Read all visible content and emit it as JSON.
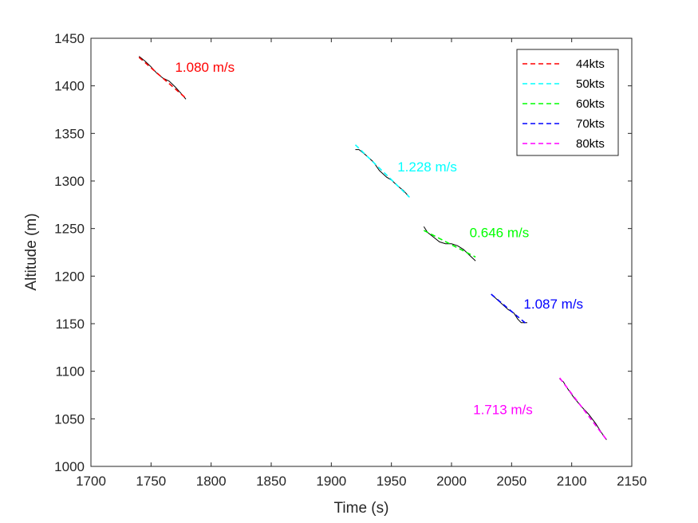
{
  "chart_data": {
    "type": "line",
    "xlabel": "Time (s)",
    "ylabel": "Altitude (m)",
    "xlim": [
      1700,
      2150
    ],
    "ylim": [
      1000,
      1450
    ],
    "xticks": [
      1700,
      1750,
      1800,
      1850,
      1900,
      1950,
      2000,
      2050,
      2100,
      2150
    ],
    "yticks": [
      1000,
      1050,
      1100,
      1150,
      1200,
      1250,
      1300,
      1350,
      1400,
      1450
    ],
    "grid": false,
    "legend_position": "top-right",
    "series": [
      {
        "name": "44kts",
        "color": "#ff0000",
        "style": "dashed",
        "x": [
          1740,
          1779
        ],
        "y": [
          1430,
          1387
        ],
        "measured": {
          "x": [
            1740,
            1745,
            1750,
            1755,
            1760,
            1765,
            1770,
            1775,
            1779
          ],
          "y": [
            1431,
            1426,
            1420,
            1413,
            1408,
            1405,
            1399,
            1392,
            1386
          ]
        },
        "annotation": {
          "text": "1.080 m/s",
          "x": 1770,
          "y": 1415
        }
      },
      {
        "name": "50kts",
        "color": "#00ffff",
        "style": "dashed",
        "x": [
          1920,
          1965
        ],
        "y": [
          1338,
          1283
        ],
        "measured": {
          "x": [
            1920,
            1923,
            1928,
            1935,
            1940,
            1946,
            1950,
            1955,
            1960,
            1965
          ],
          "y": [
            1333,
            1333,
            1328,
            1320,
            1311,
            1304,
            1301,
            1295,
            1290,
            1283
          ]
        },
        "annotation": {
          "text": "1.228 m/s",
          "x": 1955,
          "y": 1310
        }
      },
      {
        "name": "60kts",
        "color": "#00ff00",
        "style": "dashed",
        "x": [
          1977,
          2020
        ],
        "y": [
          1248,
          1220
        ],
        "measured": {
          "x": [
            1977,
            1980,
            1985,
            1990,
            1995,
            2000,
            2005,
            2010,
            2015,
            2020
          ],
          "y": [
            1252,
            1246,
            1241,
            1236,
            1234,
            1234,
            1232,
            1228,
            1222,
            1216
          ]
        },
        "annotation": {
          "text": "0.646 m/s",
          "x": 2015,
          "y": 1241
        }
      },
      {
        "name": "70kts",
        "color": "#0000ff",
        "style": "dashed",
        "x": [
          2033,
          2063
        ],
        "y": [
          1181,
          1149
        ],
        "measured": {
          "x": [
            2033,
            2040,
            2047,
            2052,
            2055,
            2058,
            2060,
            2063
          ],
          "y": [
            1181,
            1173,
            1165,
            1161,
            1155,
            1151,
            1151,
            1151
          ]
        },
        "annotation": {
          "text": "1.087 m/s",
          "x": 2060,
          "y": 1166
        }
      },
      {
        "name": "80kts",
        "color": "#ff00ff",
        "style": "dashed",
        "x": [
          2090,
          2129
        ],
        "y": [
          1093,
          1028
        ],
        "measured": {
          "x": [
            2090,
            2093,
            2097,
            2102,
            2108,
            2114,
            2120,
            2125,
            2129
          ],
          "y": [
            1092,
            1089,
            1081,
            1072,
            1063,
            1055,
            1045,
            1035,
            1028
          ]
        },
        "annotation": {
          "text": "1.713 m/s",
          "x": 2018,
          "y": 1055
        }
      }
    ]
  }
}
